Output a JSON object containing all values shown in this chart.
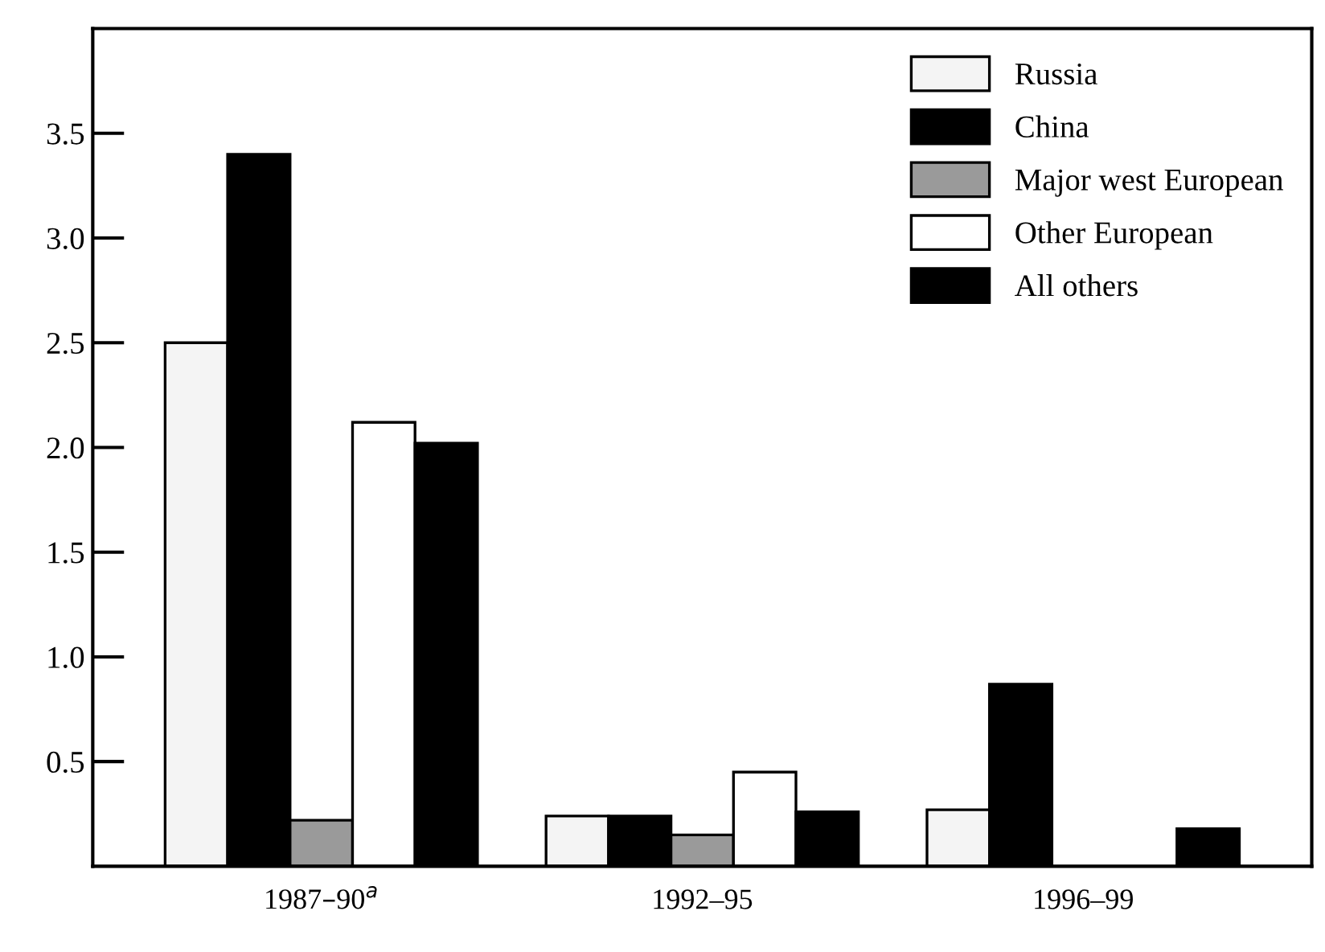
{
  "chart_data": {
    "type": "bar",
    "categories": [
      "1987–90$^{a}$",
      "1992–95",
      "1996–99"
    ],
    "series": [
      {
        "name": "Russia",
        "color": "#f4f4f4",
        "values": [
          2.5,
          0.24,
          0.27
        ]
      },
      {
        "name": "China",
        "color": "#000000",
        "values": [
          3.4,
          0.24,
          0.87
        ]
      },
      {
        "name": "Major west European",
        "color": "#9a9a9a",
        "values": [
          0.22,
          0.15,
          null
        ]
      },
      {
        "name": "Other European",
        "color": "#ffffff",
        "values": [
          2.12,
          0.45,
          null
        ]
      },
      {
        "name": "All others",
        "color": "#000000",
        "values": [
          2.02,
          0.26,
          0.18
        ]
      }
    ],
    "ylim": [
      0,
      4.0
    ],
    "yticks": [
      0.5,
      {
        "value": 1,
        "label": "1.0"
      },
      1.5,
      {
        "value": 2,
        "label": "2.0"
      },
      2.5,
      {
        "value": 3,
        "label": "3.0"
      },
      3.5
    ],
    "grid": false,
    "legend": "top right"
  }
}
